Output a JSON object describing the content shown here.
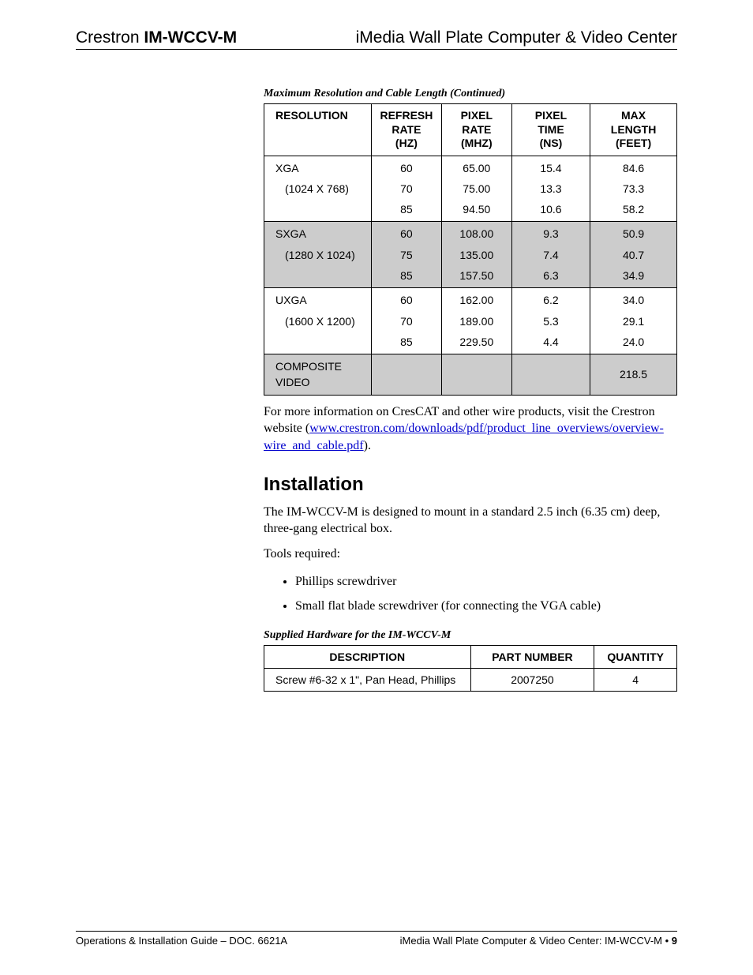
{
  "header": {
    "brand": "Crestron ",
    "model": "IM-WCCV-M",
    "right": "iMedia Wall Plate Computer & Video Center"
  },
  "table1": {
    "caption": "Maximum Resolution and Cable Length (Continued)",
    "columns": [
      "RESOLUTION",
      "REFRESH RATE (HZ)",
      "PIXEL RATE (MHZ)",
      "PIXEL TIME (NS)",
      "MAX LENGTH (FEET)"
    ],
    "col_widths": [
      "26%",
      "17%",
      "17%",
      "19%",
      "21%"
    ],
    "groups": [
      {
        "shade": false,
        "name": "XGA",
        "dim": "(1024 X 768)",
        "rows": [
          [
            "60",
            "65.00",
            "15.4",
            "84.6"
          ],
          [
            "70",
            "75.00",
            "13.3",
            "73.3"
          ],
          [
            "85",
            "94.50",
            "10.6",
            "58.2"
          ]
        ]
      },
      {
        "shade": true,
        "name": "SXGA",
        "dim": "(1280 X 1024)",
        "rows": [
          [
            "60",
            "108.00",
            "9.3",
            "50.9"
          ],
          [
            "75",
            "135.00",
            "7.4",
            "40.7"
          ],
          [
            "85",
            "157.50",
            "6.3",
            "34.9"
          ]
        ]
      },
      {
        "shade": false,
        "name": "UXGA",
        "dim": "(1600 X 1200)",
        "rows": [
          [
            "60",
            "162.00",
            "6.2",
            "34.0"
          ],
          [
            "70",
            "189.00",
            "5.3",
            "29.1"
          ],
          [
            "85",
            "229.50",
            "4.4",
            "24.0"
          ]
        ]
      },
      {
        "shade": true,
        "name": "COMPOSITE VIDEO",
        "dim": "",
        "rows": [
          [
            "",
            "",
            "",
            "218.5"
          ]
        ]
      }
    ]
  },
  "para1": {
    "pre": "For more information on CresCAT and other wire products, visit the Crestron website (",
    "link": "www.crestron.com/downloads/pdf/product_line_overviews/overview-wire_and_cable.pdf",
    "post": ")."
  },
  "section_heading": "Installation",
  "para2": "The IM-WCCV-M is designed to mount in a standard 2.5 inch (6.35 cm) deep, three-gang electrical box.",
  "para3": "Tools required:",
  "tools": [
    "Phillips screwdriver",
    "Small flat blade screwdriver (for connecting the VGA cable)"
  ],
  "table2": {
    "caption": "Supplied Hardware for the IM-WCCV-M",
    "columns": [
      "DESCRIPTION",
      "PART NUMBER",
      "QUANTITY"
    ],
    "col_widths": [
      "50%",
      "30%",
      "20%"
    ],
    "rows": [
      [
        "Screw #6-32 x 1\", Pan Head, Phillips",
        "2007250",
        "4"
      ]
    ]
  },
  "footer": {
    "left": "Operations & Installation Guide – DOC. 6621A",
    "right_pre": "iMedia Wall Plate Computer & Video Center: IM-WCCV-M",
    "dot": "  •  ",
    "page": "9"
  }
}
